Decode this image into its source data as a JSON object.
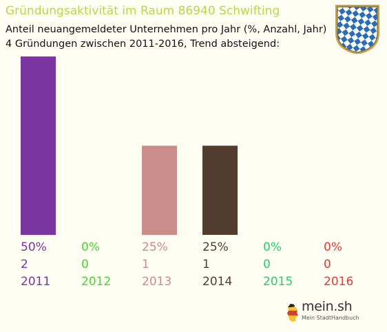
{
  "header": {
    "title": "Gründungsaktivität im Raum 86940 Schwifting",
    "subtitle_line1": "Anteil neuangemeldeter Unternehmen pro Jahr (%, Anzahl, Jahr)",
    "subtitle_line2": "4 Gründungen zwischen 2011-2016, Trend absteigend:"
  },
  "crest": {
    "icon": "bavarian-coat-of-arms-icon",
    "colors": [
      "#2a6cb6",
      "#ffffff",
      "#c8a14a"
    ]
  },
  "chart_data": {
    "type": "bar",
    "categories": [
      "2011",
      "2012",
      "2013",
      "2014",
      "2015",
      "2016"
    ],
    "values": [
      2,
      0,
      1,
      1,
      0,
      0
    ],
    "percent_labels": [
      "50%",
      "0%",
      "25%",
      "25%",
      "0%",
      "0%"
    ],
    "count_labels": [
      "2",
      "0",
      "1",
      "1",
      "0",
      "0"
    ],
    "colors": [
      "#7b35a0",
      "#4cd435",
      "#cb8d8a",
      "#523c30",
      "#2ecc67",
      "#e03a3a"
    ],
    "ylim": [
      0,
      2
    ],
    "grid": false
  },
  "logo": {
    "text": "mein.sh",
    "subtext": "Mein StadtHandbuch",
    "icon": "germany-map-pin-icon"
  }
}
